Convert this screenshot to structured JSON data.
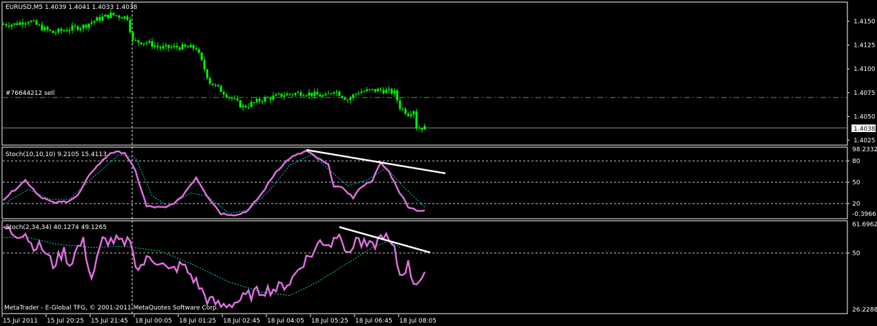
{
  "window": {
    "symbol_header": "EURUSD,M5  1.4039 1.4041 1.4033 1.4038",
    "order_label": "#76644212 sell",
    "order_price": 1.407,
    "current_price_label": "1.4038",
    "current_price": 1.4038,
    "copyright": "MetaTrader - E-Global TFG, © 2001-2011 MetaQuotes Software Corp."
  },
  "colors": {
    "background": "#000000",
    "bars": "#00ff00",
    "stoch_main": "#e070e0",
    "stoch_signal": "#00e0e0",
    "trendline": "#ffffff",
    "order_line": "#22bb22",
    "price_line": "#8090a0"
  },
  "price_axis": {
    "labels": [
      "1.4150",
      "1.4125",
      "1.4100",
      "1.4075",
      "1.4050",
      "1.4025"
    ],
    "values": [
      1.415,
      1.4125,
      1.41,
      1.4075,
      1.405,
      1.4025
    ]
  },
  "stoch1": {
    "label": "Stoch(10,10,10) 9.2105 15.4113",
    "axis_labels": [
      "98.2332",
      "80",
      "50",
      "20",
      "-0.3966"
    ],
    "levels": [
      80,
      50,
      20
    ],
    "main": [
      [
        0,
        26
      ],
      [
        8,
        53
      ],
      [
        13,
        31
      ],
      [
        18,
        21
      ],
      [
        23,
        23
      ],
      [
        27,
        31
      ],
      [
        32,
        65
      ],
      [
        39,
        92
      ],
      [
        44,
        92
      ],
      [
        48,
        65
      ],
      [
        52,
        16
      ],
      [
        59,
        14
      ],
      [
        64,
        26
      ],
      [
        70,
        57
      ],
      [
        74,
        31
      ],
      [
        79,
        6
      ],
      [
        85,
        4
      ],
      [
        89,
        11
      ],
      [
        94,
        35
      ],
      [
        99,
        65
      ],
      [
        104,
        84
      ],
      [
        110,
        94
      ],
      [
        114,
        84
      ],
      [
        118,
        74
      ],
      [
        120,
        45
      ],
      [
        124,
        40
      ],
      [
        127,
        28
      ],
      [
        130,
        44
      ],
      [
        134,
        53
      ],
      [
        137,
        77
      ],
      [
        140,
        65
      ],
      [
        144,
        35
      ],
      [
        147,
        16
      ],
      [
        150,
        11
      ],
      [
        153,
        9.2
      ]
    ],
    "signal": [
      [
        0,
        19
      ],
      [
        9,
        40
      ],
      [
        17,
        26
      ],
      [
        24,
        26
      ],
      [
        32,
        55
      ],
      [
        42,
        89
      ],
      [
        48,
        84
      ],
      [
        54,
        31
      ],
      [
        60,
        16
      ],
      [
        68,
        35
      ],
      [
        74,
        31
      ],
      [
        82,
        6
      ],
      [
        89,
        11
      ],
      [
        97,
        40
      ],
      [
        104,
        74
      ],
      [
        112,
        89
      ],
      [
        119,
        65
      ],
      [
        125,
        45
      ],
      [
        132,
        53
      ],
      [
        139,
        70
      ],
      [
        145,
        45
      ],
      [
        150,
        26
      ],
      [
        153,
        15.4
      ]
    ],
    "trendline": [
      [
        110,
        95.5
      ],
      [
        160.5,
        62.6
      ]
    ]
  },
  "stoch2": {
    "label": "Stoch(2,34,34) 40.1274 49.1265",
    "axis_labels": [
      "61.6962",
      "50",
      "26.2288"
    ],
    "levels": [
      50
    ],
    "main": [
      [
        0,
        60.8
      ],
      [
        4,
        58
      ],
      [
        8,
        58.5
      ],
      [
        10,
        53.7
      ],
      [
        14,
        52.3
      ],
      [
        18,
        45.1
      ],
      [
        22,
        50.8
      ],
      [
        24,
        45.1
      ],
      [
        27,
        52.3
      ],
      [
        29,
        54.5
      ],
      [
        32,
        39.4
      ],
      [
        36,
        55.1
      ],
      [
        42,
        55.1
      ],
      [
        44,
        52.3
      ],
      [
        46,
        56.5
      ],
      [
        47,
        49.4
      ],
      [
        49,
        43.7
      ],
      [
        53,
        48
      ],
      [
        57,
        46.5
      ],
      [
        60,
        42.2
      ],
      [
        65,
        45.1
      ],
      [
        70,
        37.9
      ],
      [
        74,
        30.8
      ],
      [
        79,
        28
      ],
      [
        84,
        29.4
      ],
      [
        89,
        32.3
      ],
      [
        94,
        34.5
      ],
      [
        99,
        35.1
      ],
      [
        104,
        37.9
      ],
      [
        109,
        46.5
      ],
      [
        113,
        50.8
      ],
      [
        115,
        55.1
      ],
      [
        119,
        53.7
      ],
      [
        122,
        60
      ],
      [
        125,
        48
      ],
      [
        128,
        56.5
      ],
      [
        130,
        53.7
      ],
      [
        134,
        52.3
      ],
      [
        138,
        58
      ],
      [
        142,
        50.8
      ],
      [
        144,
        40.8
      ],
      [
        147,
        45.1
      ],
      [
        149,
        37.9
      ],
      [
        153,
        40.1
      ]
    ],
    "signal": [
      [
        0,
        56.5
      ],
      [
        9,
        56.5
      ],
      [
        19,
        53.7
      ],
      [
        32,
        52.3
      ],
      [
        44,
        52.8
      ],
      [
        57,
        50.8
      ],
      [
        69,
        45.1
      ],
      [
        82,
        37.9
      ],
      [
        94,
        33.7
      ],
      [
        104,
        32.3
      ],
      [
        114,
        37.9
      ],
      [
        124,
        45.1
      ],
      [
        134,
        52.3
      ],
      [
        140,
        55.1
      ],
      [
        144,
        52.3
      ]
    ],
    "trendline": [
      [
        122,
        60.8
      ],
      [
        155,
        50.2
      ]
    ]
  },
  "price_series": [
    [
      0,
      1.4147
    ],
    [
      4,
      1.4147
    ],
    [
      9,
      1.4151
    ],
    [
      14,
      1.4143
    ],
    [
      18,
      1.4138
    ],
    [
      24,
      1.4142
    ],
    [
      29,
      1.4145
    ],
    [
      34,
      1.4152
    ],
    [
      39,
      1.4157
    ],
    [
      45,
      1.4154
    ],
    [
      47,
      1.4129
    ],
    [
      52,
      1.4128
    ],
    [
      57,
      1.4122
    ],
    [
      64,
      1.4123
    ],
    [
      70,
      1.4122
    ],
    [
      73,
      1.41
    ],
    [
      75,
      1.4086
    ],
    [
      82,
      1.4071
    ],
    [
      87,
      1.406
    ],
    [
      94,
      1.4068
    ],
    [
      102,
      1.4073
    ],
    [
      109,
      1.4075
    ],
    [
      117,
      1.4071
    ],
    [
      120,
      1.4078
    ],
    [
      125,
      1.4068
    ],
    [
      129,
      1.4076
    ],
    [
      137,
      1.4078
    ],
    [
      142,
      1.4075
    ],
    [
      144,
      1.406
    ],
    [
      147,
      1.4053
    ],
    [
      149,
      1.4057
    ],
    [
      150,
      1.4039
    ],
    [
      153,
      1.4038
    ]
  ],
  "time_axis": {
    "labels": [
      "15 Jul 2011",
      "15 Jul 20:25",
      "15 Jul 21:45",
      "18 Jul 00:05",
      "18 Jul 01:25",
      "18 Jul 02:45",
      "18 Jul 04:05",
      "18 Jul 05:25",
      "18 Jul 06:45",
      "18 Jul 08:05"
    ]
  },
  "period_separator_bar": 47
}
